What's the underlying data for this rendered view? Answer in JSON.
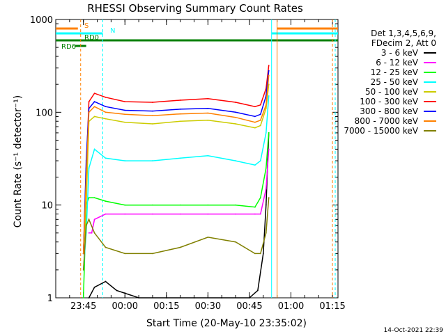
{
  "chart_data": {
    "type": "line",
    "title": "RHESSI Observing Summary Count Rates",
    "xlabel": "Start Time (20-May-10 23:35:02)",
    "ylabel": "Count Rate (s⁻¹ detector⁻¹)",
    "yscale": "log",
    "ylim": [
      1,
      1000
    ],
    "y_ticks": [
      1,
      10,
      100,
      1000
    ],
    "y_tick_labels": [
      "1",
      "10",
      "100",
      "1000"
    ],
    "x_axis_minutes_range": [
      0,
      102
    ],
    "x_ticks": [
      {
        "t": 10,
        "label": "23:45"
      },
      {
        "t": 25,
        "label": "00:00"
      },
      {
        "t": 40,
        "label": "00:15"
      },
      {
        "t": 55,
        "label": "00:30"
      },
      {
        "t": 70,
        "label": "00:45"
      },
      {
        "t": 85,
        "label": "01:00"
      },
      {
        "t": 100,
        "label": "01:15"
      }
    ],
    "legend_header": [
      "Det 1,3,4,5,6,9,",
      "FDecim 2, Att 0"
    ],
    "series": [
      {
        "name": "3 - 6 keV",
        "color": "#000000",
        "x": [
          12,
          14,
          18,
          22,
          30,
          40,
          50,
          60,
          70,
          73,
          75,
          76,
          77
        ],
        "y": [
          1,
          1.3,
          1.5,
          1.2,
          1,
          1,
          1,
          1,
          1,
          1.2,
          3,
          10,
          60
        ]
      },
      {
        "name": "6 - 12 keV",
        "color": "#ff00ff",
        "x": [
          12,
          13,
          14,
          18,
          25,
          35,
          45,
          55,
          65,
          72,
          74,
          76,
          77
        ],
        "y": [
          5,
          5,
          7,
          8,
          8,
          8,
          8,
          8,
          8,
          8,
          8,
          15,
          40
        ]
      },
      {
        "name": "12 - 25 keV",
        "color": "#00ff00",
        "x": [
          10,
          11,
          12,
          14,
          18,
          25,
          35,
          45,
          55,
          65,
          72,
          74,
          76,
          77
        ],
        "y": [
          1,
          10,
          12,
          12,
          11,
          10,
          10,
          10,
          10,
          10,
          9.5,
          12,
          25,
          60
        ]
      },
      {
        "name": "25 - 50 keV",
        "color": "#00ffff",
        "x": [
          10,
          11,
          12,
          14,
          18,
          25,
          35,
          45,
          55,
          65,
          72,
          74,
          76,
          77
        ],
        "y": [
          2,
          5,
          25,
          40,
          32,
          30,
          30,
          32,
          34,
          30,
          27,
          30,
          60,
          150
        ]
      },
      {
        "name": "50 - 100 keV",
        "color": "#cccc00",
        "x": [
          10,
          11,
          12,
          14,
          18,
          25,
          35,
          45,
          55,
          65,
          72,
          74,
          76,
          77
        ],
        "y": [
          3,
          10,
          80,
          90,
          85,
          78,
          75,
          80,
          82,
          75,
          68,
          72,
          110,
          200
        ]
      },
      {
        "name": "100 - 300 keV",
        "color": "#ff0000",
        "x": [
          10,
          11,
          12,
          14,
          18,
          25,
          35,
          45,
          55,
          65,
          72,
          74,
          76,
          77
        ],
        "y": [
          3,
          25,
          130,
          160,
          145,
          130,
          128,
          135,
          140,
          128,
          115,
          120,
          180,
          320
        ]
      },
      {
        "name": "300 - 800 keV",
        "color": "#0000ff",
        "x": [
          10,
          11,
          12,
          14,
          18,
          25,
          35,
          45,
          55,
          65,
          72,
          74,
          76,
          77
        ],
        "y": [
          3,
          30,
          110,
          130,
          115,
          105,
          103,
          108,
          110,
          100,
          90,
          95,
          150,
          280
        ]
      },
      {
        "name": "800 - 7000 keV",
        "color": "#ff8000",
        "x": [
          10,
          11,
          12,
          14,
          18,
          25,
          35,
          45,
          55,
          65,
          72,
          74,
          76,
          77
        ],
        "y": [
          3,
          20,
          100,
          115,
          100,
          95,
          92,
          96,
          98,
          88,
          78,
          82,
          120,
          250
        ]
      },
      {
        "name": "7000 - 15000 keV",
        "color": "#808000",
        "x": [
          10,
          11,
          12,
          14,
          18,
          25,
          35,
          45,
          55,
          65,
          72,
          74,
          76,
          77
        ],
        "y": [
          2,
          6,
          7,
          5,
          3.5,
          3,
          3,
          3.5,
          4.5,
          4,
          3,
          3,
          5,
          12
        ]
      }
    ],
    "flag_bars": [
      {
        "label": "S",
        "color": "#ff8000",
        "segments": [
          [
            0,
            8
          ],
          [
            80,
            102
          ]
        ]
      },
      {
        "label": "N",
        "color": "#00ffff",
        "segments": [
          [
            0,
            17
          ],
          [
            78,
            102
          ]
        ]
      },
      {
        "label": "RD0",
        "color": "#008000",
        "segments": [
          [
            0,
            102
          ]
        ]
      },
      {
        "label": "RD6",
        "color": "#008000",
        "segments": [
          [
            7,
            11
          ]
        ]
      }
    ],
    "vertical_markers": [
      {
        "t": 9,
        "color": "#ff8000",
        "style": "dashed"
      },
      {
        "t": 17,
        "color": "#00ffff",
        "style": "dashed"
      },
      {
        "t": 78,
        "color": "#00ffff",
        "style": "solid"
      },
      {
        "t": 80,
        "color": "#ff8000",
        "style": "solid"
      },
      {
        "t": 100,
        "color": "#ff8000",
        "style": "dashed"
      },
      {
        "t": 101,
        "color": "#00ffff",
        "style": "dashed"
      }
    ],
    "footer_date": "14-Oct-2021 22:39"
  }
}
